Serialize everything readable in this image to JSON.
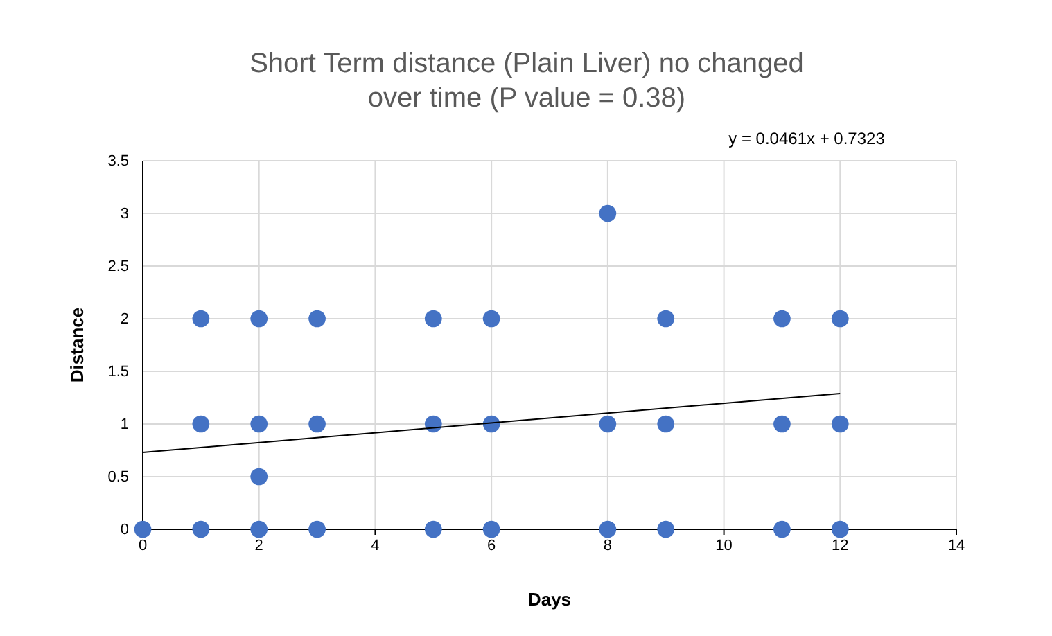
{
  "chart_data": {
    "type": "scatter",
    "title": "Short Term distance (Plain Liver) no changed over time (P value = 0.38)",
    "xlabel": "Days",
    "ylabel": "Distance",
    "xlim": [
      0,
      14
    ],
    "xticks": [
      0,
      2,
      4,
      6,
      8,
      10,
      12,
      14
    ],
    "ylim": [
      0,
      3.5
    ],
    "yticks": [
      0,
      0.5,
      1,
      1.5,
      2,
      2.5,
      3,
      3.5
    ],
    "grid": true,
    "marker": "circle",
    "series": [
      {
        "color": "#4472c4",
        "x": [
          0,
          1,
          1,
          1,
          2,
          2,
          2,
          2,
          3,
          3,
          3,
          5,
          5,
          5,
          6,
          6,
          6,
          8,
          8,
          8,
          9,
          9,
          9,
          11,
          11,
          11,
          12,
          12,
          12
        ],
        "values": [
          0,
          0,
          1,
          2,
          0,
          0.5,
          1,
          2,
          0,
          1,
          2,
          0,
          1,
          2,
          0,
          1,
          2,
          0,
          1,
          3,
          0,
          1,
          2,
          0,
          1,
          2,
          0,
          1,
          2
        ]
      },
      {
        "type": "line",
        "color": "#000000",
        "marker": "none",
        "x": [
          0,
          12
        ],
        "values": [
          0.73,
          1.29
        ]
      }
    ],
    "annotations": [
      "y = 0.0461x + 0.7323"
    ]
  }
}
